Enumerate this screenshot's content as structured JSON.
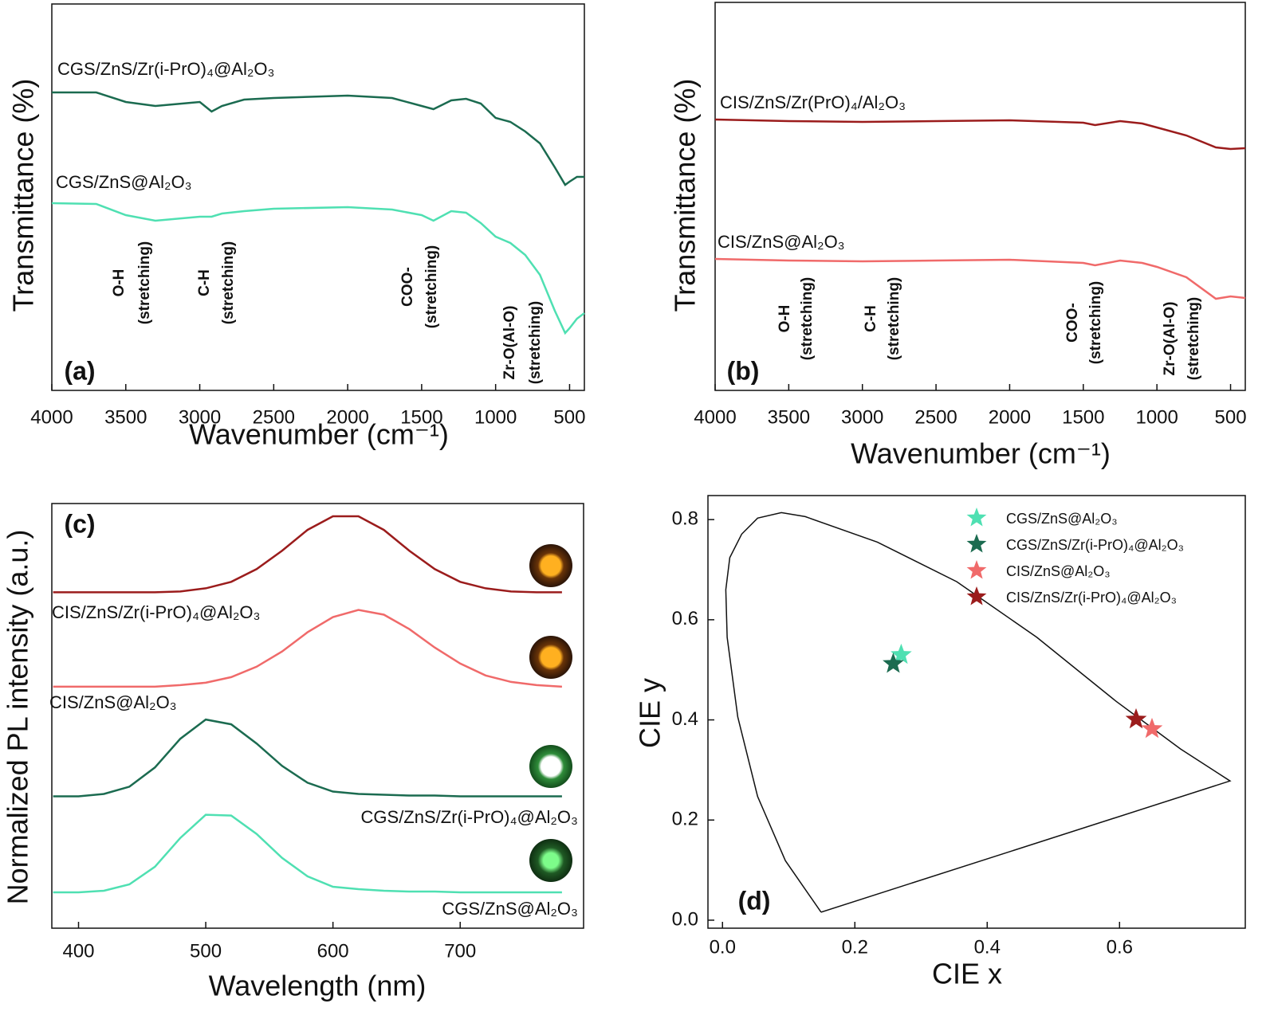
{
  "chart_data": [
    {
      "type": "line",
      "label": "(a)",
      "xlabel": "Wavenumber (cm⁻¹)",
      "ylabel": "Transmittance (%)",
      "xlim": [
        4000,
        400
      ],
      "xticks": [
        4000,
        3500,
        3000,
        2500,
        2000,
        1500,
        1000,
        500
      ],
      "x": [
        4000,
        3700,
        3500,
        3300,
        3000,
        2920,
        2850,
        2700,
        2500,
        2000,
        1700,
        1500,
        1420,
        1300,
        1200,
        1100,
        1000,
        900,
        800,
        700,
        600,
        530,
        500,
        450,
        400
      ],
      "series": [
        {
          "name": "CGS/ZnS/Zr(i-PrO)₄@Al₂O₃",
          "color": "#1b6b50",
          "values": [
            374,
            374,
            362,
            357,
            362,
            350,
            357,
            365,
            367,
            370,
            367,
            357,
            353,
            364,
            366,
            360,
            342,
            337,
            325,
            310,
            280,
            258,
            262,
            268,
            268
          ]
        },
        {
          "name": "CGS/ZnS@Al₂O₃",
          "color": "#4fe0b2",
          "values": [
            235,
            234,
            220,
            213,
            218,
            218,
            222,
            225,
            228,
            230,
            227,
            220,
            213,
            225,
            223,
            210,
            193,
            185,
            170,
            145,
            100,
            72,
            78,
            90,
            97
          ]
        }
      ],
      "annotations": [
        [
          "O-H",
          "(stretching)"
        ],
        [
          "C-H",
          "(stretching)"
        ],
        [
          "COO-",
          "(stretching)"
        ],
        [
          "Zr-O(Al-O)",
          "(stretching)"
        ]
      ]
    },
    {
      "type": "line",
      "label": "(b)",
      "xlabel": "Wavenumber (cm⁻¹)",
      "ylabel": "Transmittance (%)",
      "xlim": [
        4000,
        400
      ],
      "xticks": [
        4000,
        3500,
        3000,
        2500,
        2000,
        1500,
        1000,
        500
      ],
      "x": [
        4000,
        3500,
        3000,
        2500,
        2000,
        1500,
        1420,
        1250,
        1100,
        1000,
        800,
        600,
        500,
        400
      ],
      "series": [
        {
          "name": "CIS/ZnS/Zr(PrO)₄/Al₂O₃",
          "color": "#9b1c1c",
          "values": [
            340,
            338,
            337,
            338,
            339,
            336,
            333,
            338,
            335,
            330,
            320,
            305,
            303,
            304
          ]
        },
        {
          "name": "CIS/ZnS@Al₂O₃",
          "color": "#f06a6a",
          "values": [
            165,
            163,
            162,
            163,
            164,
            160,
            157,
            163,
            160,
            155,
            142,
            115,
            118,
            116
          ]
        }
      ],
      "annotations": [
        [
          "O-H",
          "(stretching)"
        ],
        [
          "C-H",
          "(stretching)"
        ],
        [
          "COO-",
          "(stretching)"
        ],
        [
          "Zr-O(Al-O)",
          "(stretching)"
        ]
      ]
    },
    {
      "type": "line",
      "label": "(c)",
      "xlabel": "Wavelength (nm)",
      "ylabel": "Normalized PL intensity (a.u.)",
      "xlim": [
        379,
        797
      ],
      "xticks": [
        400,
        500,
        600,
        700
      ],
      "x": [
        380,
        400,
        420,
        440,
        460,
        480,
        500,
        520,
        540,
        560,
        580,
        600,
        620,
        640,
        660,
        680,
        700,
        720,
        740,
        760,
        780
      ],
      "series": [
        {
          "name": "CIS/ZnS/Zr(i-PrO)₄@Al₂O₃",
          "color": "#9b1c1c",
          "values": [
            420,
            420,
            420,
            420,
            420,
            421,
            425,
            433,
            449,
            472,
            498,
            515,
            515,
            498,
            472,
            449,
            433,
            425,
            421,
            420,
            420
          ]
        },
        {
          "name": "CIS/ZnS@Al₂O₃",
          "color": "#f06a6a",
          "values": [
            302,
            302,
            302,
            302,
            302,
            304,
            307,
            314,
            327,
            346,
            370,
            389,
            398,
            392,
            374,
            351,
            331,
            316,
            308,
            304,
            302
          ]
        },
        {
          "name": "CGS/ZnS/Zr(i-PrO)₄@Al₂O₃",
          "color": "#1b6b50",
          "values": [
            165,
            165,
            168,
            177,
            201,
            237,
            261,
            255,
            231,
            203,
            182,
            171,
            168,
            167,
            166,
            166,
            165,
            165,
            165,
            165,
            165
          ]
        },
        {
          "name": "CGS/ZnS@Al₂O₃",
          "color": "#4fe0b2",
          "values": [
            45,
            45,
            47,
            55,
            77,
            113,
            142,
            141,
            118,
            88,
            65,
            52,
            49,
            47,
            46,
            46,
            45,
            45,
            45,
            45,
            45
          ]
        }
      ]
    },
    {
      "type": "scatter",
      "label": "(d)",
      "xlabel": "CIE x",
      "ylabel": "CIE y",
      "xlim": [
        -0.022,
        0.79
      ],
      "ylim": [
        -0.016,
        0.848
      ],
      "xticks": [
        {
          "value": 0,
          "label": "0.0"
        },
        0.2,
        0.4,
        0.6
      ],
      "yticks": [
        {
          "value": 0,
          "label": "0.0"
        },
        0.2,
        0.4,
        0.6,
        0.8
      ],
      "locus": {
        "x": [
          0.149,
          0.095,
          0.053,
          0.023,
          0.007,
          0.005,
          0.011,
          0.029,
          0.053,
          0.089,
          0.125,
          0.234,
          0.354,
          0.475,
          0.595,
          0.692,
          0.767,
          0.149
        ],
        "y": [
          0.016,
          0.119,
          0.247,
          0.406,
          0.565,
          0.66,
          0.724,
          0.771,
          0.803,
          0.814,
          0.806,
          0.755,
          0.676,
          0.565,
          0.437,
          0.342,
          0.278,
          0.016
        ]
      },
      "series": [
        {
          "name": "CGS/ZnS@Al₂O₃",
          "color": "#4fe0b2",
          "x": [
            0.27
          ],
          "y": [
            0.53
          ]
        },
        {
          "name": "CGS/ZnS/Zr(i-PrO)₄@Al₂O₃",
          "color": "#1b6b50",
          "x": [
            0.258
          ],
          "y": [
            0.512
          ]
        },
        {
          "name": "CIS/ZnS@Al₂O₃",
          "color": "#f06a6a",
          "x": [
            0.649
          ],
          "y": [
            0.382
          ]
        },
        {
          "name": "CIS/ZnS/Zr(i-PrO)₄@Al₂O₃",
          "color": "#9b1c1c",
          "x": [
            0.625
          ],
          "y": [
            0.401
          ]
        }
      ]
    }
  ]
}
